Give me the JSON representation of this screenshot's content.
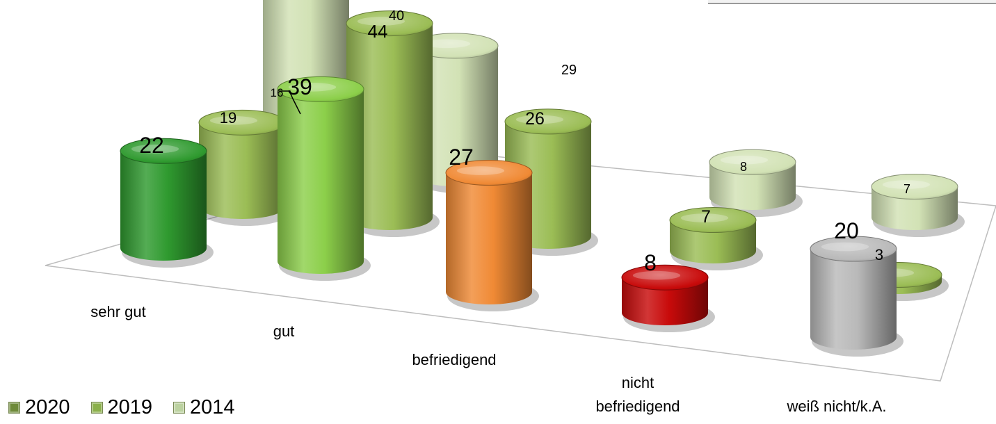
{
  "chart_data": {
    "type": "bar",
    "style": "3d-cylinder",
    "categories": [
      "sehr gut",
      "gut",
      "befriedigend",
      "nicht befriedigend",
      "weiß nicht/k.A."
    ],
    "series": [
      {
        "name": "2020",
        "values": [
          22,
          39,
          27,
          8,
          20
        ],
        "colors": [
          "#2f9a2f",
          "#8ccf4a",
          "#f08a35",
          "#c80a0a",
          "#b9b9b9"
        ]
      },
      {
        "name": "2019",
        "values": [
          19,
          44,
          26,
          7,
          3
        ],
        "color": "#9bbd55"
      },
      {
        "name": "2014",
        "values": [
          16,
          40,
          29,
          8,
          7
        ],
        "color": "#d2e2b5"
      }
    ],
    "legend": {
      "position": "bottom-left",
      "colors": [
        "#6e8a3a",
        "#8bb04b",
        "#bcd2a0"
      ]
    },
    "grid": false
  }
}
